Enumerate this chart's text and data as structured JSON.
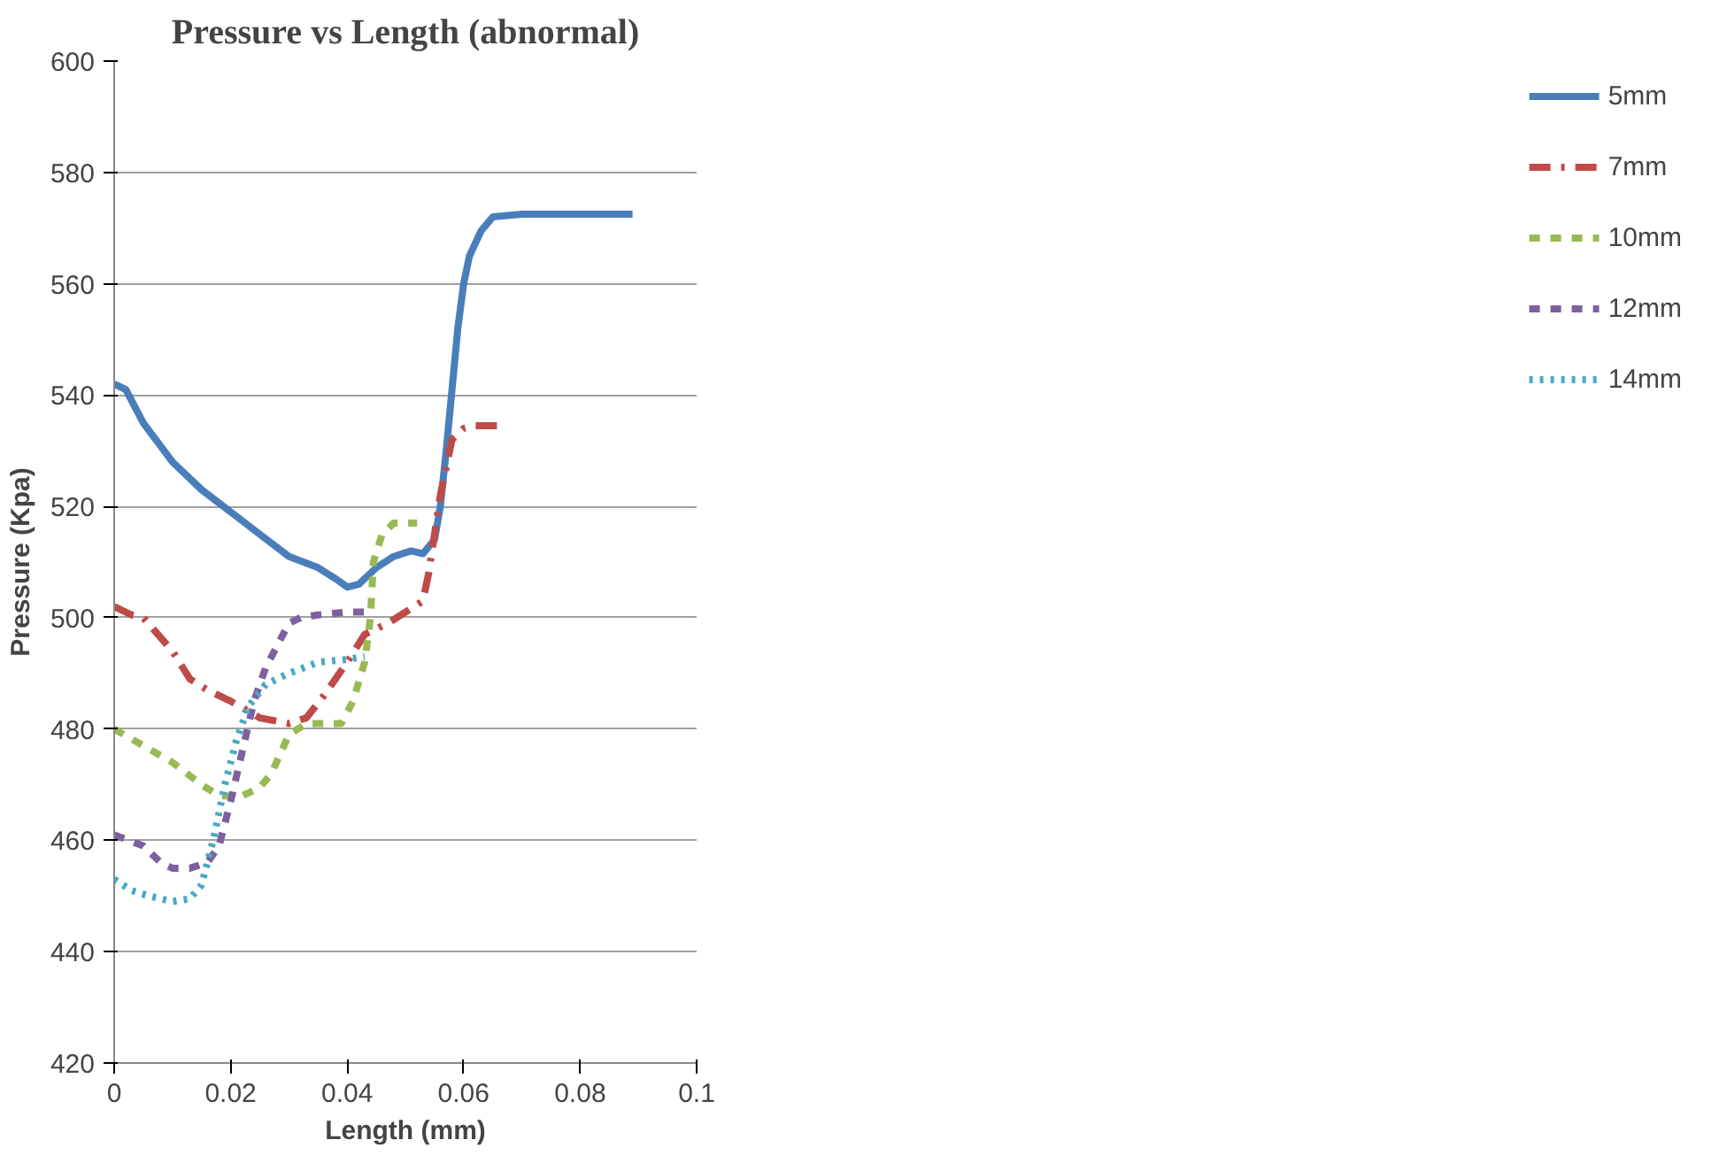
{
  "chart_data": {
    "type": "line",
    "title": "Pressure vs Length (abnormal)",
    "xlabel": "Length (mm)",
    "ylabel": "Pressure (Kpa)",
    "xlim": [
      0,
      0.1
    ],
    "xticks": [
      0,
      0.02,
      0.04,
      0.06,
      0.08,
      0.1
    ],
    "ylim": [
      420,
      600
    ],
    "yticks": [
      420,
      440,
      460,
      480,
      500,
      520,
      540,
      560,
      580,
      600
    ],
    "grid": "y",
    "legend": "right",
    "marker": "none",
    "series": [
      {
        "name": "5mm",
        "color": "#4a7ebb",
        "line_style": "solid",
        "x": [
          0,
          0.002,
          0.005,
          0.01,
          0.015,
          0.02,
          0.025,
          0.03,
          0.035,
          0.038,
          0.04,
          0.042,
          0.045,
          0.048,
          0.051,
          0.053,
          0.055,
          0.056,
          0.057,
          0.058,
          0.059,
          0.06,
          0.061,
          0.063,
          0.065,
          0.07,
          0.08,
          0.089
        ],
        "values": [
          542,
          541,
          535,
          528,
          523,
          519,
          515,
          511,
          509,
          507,
          505.5,
          506,
          509,
          511,
          512,
          511.5,
          514,
          520,
          530,
          541,
          552,
          560,
          565,
          569.5,
          572,
          572.5,
          572.5,
          572.5
        ]
      },
      {
        "name": "7mm",
        "color": "#be4b48",
        "line_style": "dashdot",
        "x": [
          0,
          0.003,
          0.005,
          0.01,
          0.013,
          0.016,
          0.02,
          0.025,
          0.03,
          0.033,
          0.036,
          0.04,
          0.043,
          0.047,
          0.05,
          0.053,
          0.054,
          0.055,
          0.056,
          0.057,
          0.058,
          0.06,
          0.062,
          0.064,
          0.067
        ],
        "values": [
          502,
          500.5,
          500,
          494,
          489,
          487,
          485,
          482,
          481,
          482,
          486,
          492,
          497,
          499,
          501,
          503,
          508,
          515,
          522,
          527,
          532,
          534,
          534.5,
          534.5,
          534.5
        ]
      },
      {
        "name": "10mm",
        "color": "#98b954",
        "line_style": "dashed",
        "x": [
          0,
          0.005,
          0.01,
          0.015,
          0.018,
          0.02,
          0.022,
          0.025,
          0.027,
          0.03,
          0.033,
          0.036,
          0.039,
          0.041,
          0.043,
          0.044,
          0.0445,
          0.046,
          0.048,
          0.052
        ],
        "values": [
          480,
          477,
          474,
          470,
          468,
          468,
          468,
          469.5,
          472,
          479,
          481,
          481,
          481,
          485,
          492,
          500,
          510,
          515,
          517,
          517
        ]
      },
      {
        "name": "12mm",
        "color": "#7d60a0",
        "line_style": "dashed",
        "x": [
          0,
          0.005,
          0.008,
          0.01,
          0.013,
          0.016,
          0.018,
          0.02,
          0.022,
          0.024,
          0.026,
          0.028,
          0.03,
          0.032,
          0.035,
          0.04,
          0.044
        ],
        "values": [
          461,
          459,
          456,
          455,
          455,
          456,
          459,
          467,
          476,
          485,
          491,
          495,
          499,
          500,
          500.5,
          501,
          501
        ]
      },
      {
        "name": "14mm",
        "color": "#46aac5",
        "line_style": "dotted",
        "x": [
          0,
          0.003,
          0.006,
          0.01,
          0.013,
          0.015,
          0.017,
          0.019,
          0.021,
          0.023,
          0.026,
          0.03,
          0.035,
          0.04,
          0.043
        ],
        "values": [
          453,
          451,
          450,
          449,
          449.5,
          452,
          460,
          470,
          478,
          484,
          488,
          490,
          492,
          492.5,
          493
        ]
      }
    ]
  }
}
